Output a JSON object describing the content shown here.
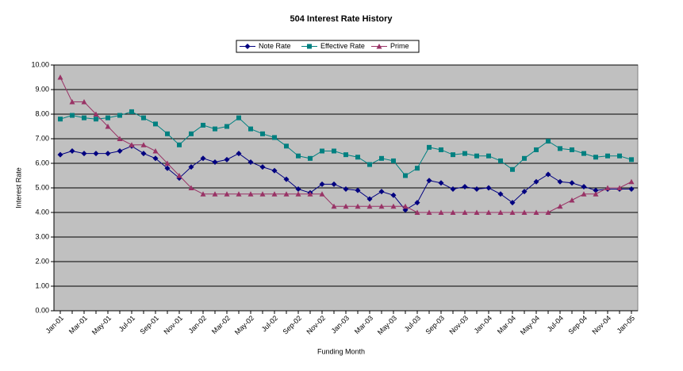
{
  "chart_data": {
    "type": "line",
    "title": "504 Interest Rate History",
    "x_label": "Funding Month",
    "y_label": "Interest Rate",
    "categories": [
      "Jan-01",
      null,
      "Mar-01",
      null,
      "May-01",
      null,
      "Jul-01",
      null,
      "Sep-01",
      null,
      "Nov-01",
      null,
      "Jan-02",
      null,
      "Mar-02",
      null,
      "May-02",
      null,
      "Jul-02",
      null,
      "Sep-02",
      null,
      "Nov-02",
      null,
      "Jan-03",
      null,
      "Mar-03",
      null,
      "May-03",
      null,
      "Jul-03",
      null,
      "Sep-03",
      null,
      "Nov-03",
      null,
      "Jan-04",
      null,
      "Mar-04",
      null,
      "May-04",
      null,
      "Jul-04",
      null,
      "Sep-04",
      null,
      "Nov-04",
      null,
      "Jan-05"
    ],
    "series": [
      {
        "name": "Note Rate",
        "color": "#000080",
        "marker": "diamond",
        "values": [
          6.35,
          6.5,
          6.4,
          6.4,
          6.4,
          6.5,
          6.7,
          6.4,
          6.2,
          5.8,
          5.4,
          5.85,
          6.2,
          6.05,
          6.15,
          6.4,
          6.05,
          5.85,
          5.7,
          5.35,
          4.95,
          4.8,
          5.15,
          5.15,
          4.95,
          4.9,
          4.55,
          4.85,
          4.7,
          4.1,
          4.4,
          5.3,
          5.2,
          4.95,
          5.05,
          4.95,
          5.0,
          4.75,
          4.4,
          4.85,
          5.25,
          5.55,
          5.25,
          5.2,
          5.05,
          4.9,
          4.95,
          4.95,
          4.95
        ]
      },
      {
        "name": "Effective Rate",
        "color": "#008080",
        "marker": "square",
        "values": [
          7.8,
          7.95,
          7.85,
          7.8,
          7.85,
          7.95,
          8.1,
          7.85,
          7.6,
          7.2,
          6.75,
          7.2,
          7.55,
          7.4,
          7.5,
          7.85,
          7.4,
          7.2,
          7.05,
          6.7,
          6.3,
          6.2,
          6.5,
          6.5,
          6.35,
          6.25,
          5.95,
          6.2,
          6.1,
          5.5,
          5.8,
          6.65,
          6.55,
          6.35,
          6.4,
          6.3,
          6.3,
          6.1,
          5.75,
          6.2,
          6.55,
          6.9,
          6.6,
          6.55,
          6.4,
          6.25,
          6.3,
          6.3,
          6.15
        ]
      },
      {
        "name": "Prime",
        "color": "#993366",
        "marker": "triangle",
        "values": [
          9.5,
          8.5,
          8.5,
          8.0,
          7.5,
          7.0,
          6.75,
          6.75,
          6.5,
          6.0,
          5.5,
          5.0,
          4.75,
          4.75,
          4.75,
          4.75,
          4.75,
          4.75,
          4.75,
          4.75,
          4.75,
          4.75,
          4.75,
          4.25,
          4.25,
          4.25,
          4.25,
          4.25,
          4.25,
          4.25,
          4.0,
          4.0,
          4.0,
          4.0,
          4.0,
          4.0,
          4.0,
          4.0,
          4.0,
          4.0,
          4.0,
          4.0,
          4.25,
          4.5,
          4.75,
          4.75,
          5.0,
          5.0,
          5.25
        ]
      }
    ],
    "ylim": [
      0,
      10
    ],
    "yticks": [
      {
        "value": 0,
        "label": "0.00"
      },
      {
        "value": 1,
        "label": "1.00"
      },
      {
        "value": 2,
        "label": "2.00"
      },
      {
        "value": 3,
        "label": "3.00"
      },
      {
        "value": 4,
        "label": "4.00"
      },
      {
        "value": 5,
        "label": "5.00"
      },
      {
        "value": 6,
        "label": "6.00"
      },
      {
        "value": 7,
        "label": "7.00"
      },
      {
        "value": 8,
        "label": "8.00"
      },
      {
        "value": 9,
        "label": "9.00"
      },
      {
        "value": 10,
        "label": "10.00"
      }
    ],
    "grid": true,
    "legend": "top",
    "plot_background": "#c0c0c0"
  }
}
